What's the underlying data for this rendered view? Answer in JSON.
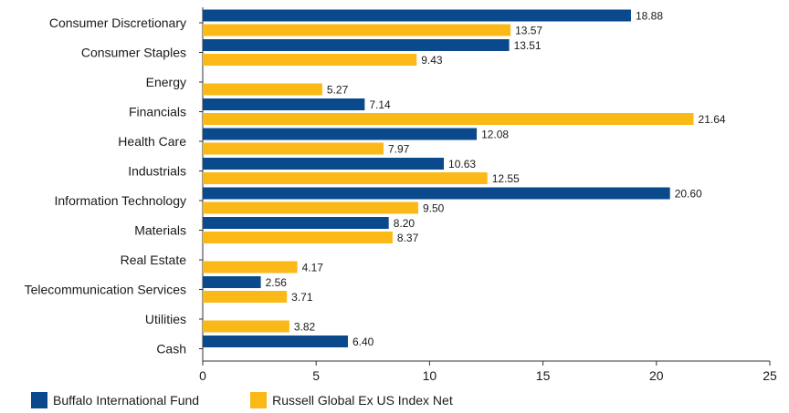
{
  "chart_data": {
    "type": "bar",
    "orientation": "horizontal",
    "title": "",
    "xlabel": "",
    "ylabel": "",
    "categories": [
      "Consumer Discretionary",
      "Consumer Staples",
      "Energy",
      "Financials",
      "Health Care",
      "Industrials",
      "Information Technology",
      "Materials",
      "Real Estate",
      "Telecommunication Services",
      "Utilities",
      "Cash"
    ],
    "series": [
      {
        "name": "Buffalo International Fund",
        "color": "#0a4a8c",
        "values": [
          18.88,
          13.51,
          null,
          7.14,
          12.08,
          10.63,
          20.6,
          8.2,
          null,
          2.56,
          null,
          6.4
        ],
        "labels": [
          "18.88",
          "13.51",
          "",
          "7.14",
          "12.08",
          "10.63",
          "20.60",
          "8.20",
          "",
          "2.56",
          "",
          "6.40"
        ]
      },
      {
        "name": "Russell Global Ex US Index Net",
        "color": "#fbb917",
        "values": [
          13.57,
          9.43,
          5.27,
          21.64,
          7.97,
          12.55,
          9.5,
          8.37,
          4.17,
          3.71,
          3.82,
          null
        ],
        "labels": [
          "13.57",
          "9.43",
          "5.27",
          "21.64",
          "7.97",
          "12.55",
          "9.50",
          "8.37",
          "4.17",
          "3.71",
          "3.82",
          ""
        ]
      }
    ],
    "xlim": [
      0,
      25
    ],
    "xticks": [
      "0",
      "5",
      "10",
      "15",
      "20",
      "25"
    ],
    "grid": false,
    "legend_position": "bottom-left"
  }
}
